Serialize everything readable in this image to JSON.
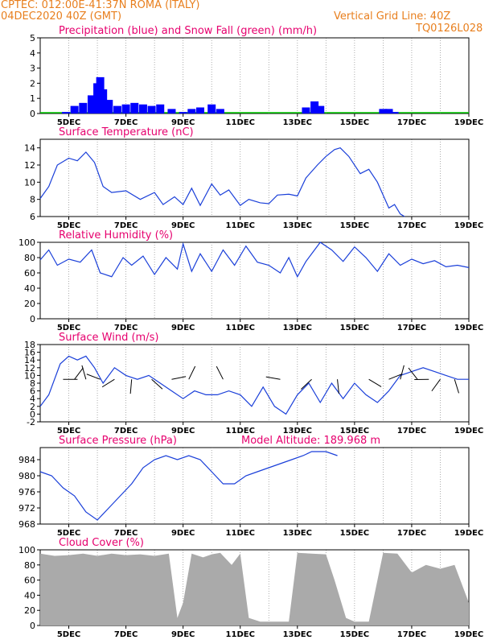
{
  "header": {
    "left_line1": "CPTEC:   012:00E-41:37N   ROMA (ITALY)",
    "left_line2": "04DEC2020 40Z (GMT)",
    "right_line1": "Vertical Grid Line: 40Z",
    "right_line2": "TQ0126L028"
  },
  "colors": {
    "header": "#e87f1e",
    "title": "#e6006e",
    "precip": "#0000ff",
    "snow": "#00cc00",
    "line": "#1a3fd9",
    "cloud": "#aaaaaa",
    "axis": "#000000",
    "grid": "#999999"
  },
  "x_axis": {
    "min_day": 4,
    "max_day": 19,
    "date_ticks": [
      "5DEC",
      "7DEC",
      "9DEC",
      "11DEC",
      "13DEC",
      "15DEC",
      "17DEC",
      "19DEC"
    ],
    "date_tick_days": [
      5,
      7,
      9,
      11,
      13,
      15,
      17,
      19
    ]
  },
  "chart_data": [
    {
      "type": "bar",
      "title": "Precipitation (blue) and Snow Fall (green) (mm/h)",
      "ylim": [
        0,
        5
      ],
      "yticks": [
        "0",
        "1",
        "2",
        "3",
        "4",
        "5"
      ],
      "series": [
        {
          "name": "Precipitation",
          "unit": "mm/h",
          "x_days": [
            4.9,
            5.2,
            5.5,
            5.8,
            6.0,
            6.1,
            6.2,
            6.4,
            6.7,
            7.0,
            7.3,
            7.6,
            7.9,
            8.2,
            8.6,
            9.0,
            9.3,
            9.6,
            10.0,
            10.3,
            13.3,
            13.6,
            13.8,
            16.0,
            16.2,
            16.4
          ],
          "values": [
            0.1,
            0.5,
            0.7,
            1.2,
            2.0,
            2.4,
            1.6,
            0.9,
            0.5,
            0.6,
            0.7,
            0.6,
            0.5,
            0.6,
            0.3,
            0.1,
            0.3,
            0.4,
            0.6,
            0.3,
            0.4,
            0.8,
            0.5,
            0.3,
            0.3,
            0.1
          ]
        },
        {
          "name": "Snow Fall",
          "unit": "mm/h",
          "values": []
        }
      ]
    },
    {
      "type": "line",
      "title": "Surface Temperature (nC)",
      "ylim": [
        6,
        15
      ],
      "yticks": [
        "6",
        "8",
        "10",
        "12",
        "14"
      ],
      "series": [
        {
          "name": "Temperature",
          "x_days": [
            4.0,
            4.3,
            4.6,
            5.0,
            5.3,
            5.6,
            5.9,
            6.2,
            6.5,
            7.0,
            7.5,
            8.0,
            8.3,
            8.7,
            9.0,
            9.3,
            9.6,
            10.0,
            10.3,
            10.6,
            11.0,
            11.3,
            11.7,
            12.0,
            12.3,
            12.7,
            13.0,
            13.3,
            13.7,
            14.0,
            14.3,
            14.5,
            14.8,
            15.2,
            15.5,
            15.8,
            16.0,
            16.2,
            16.4,
            16.6,
            16.75
          ],
          "values": [
            8.1,
            9.5,
            12.0,
            12.8,
            12.5,
            13.5,
            12.3,
            9.5,
            8.8,
            9.0,
            8.0,
            8.8,
            7.4,
            8.3,
            7.4,
            9.3,
            7.3,
            9.8,
            8.5,
            9.1,
            7.3,
            8.0,
            7.6,
            7.5,
            8.5,
            8.6,
            8.4,
            10.5,
            12.0,
            13.0,
            13.8,
            14.0,
            13.0,
            11.0,
            11.5,
            10.0,
            8.5,
            7.0,
            7.4,
            6.3,
            6.0
          ]
        }
      ]
    },
    {
      "type": "line",
      "title": "Relative Humidity (%)",
      "ylim": [
        0,
        100
      ],
      "yticks": [
        "0",
        "20",
        "40",
        "60",
        "80",
        "100"
      ],
      "series": [
        {
          "name": "Relative Humidity",
          "x_days": [
            4.0,
            4.3,
            4.6,
            5.0,
            5.4,
            5.8,
            6.1,
            6.5,
            6.9,
            7.2,
            7.6,
            8.0,
            8.4,
            8.8,
            9.0,
            9.3,
            9.6,
            10.0,
            10.4,
            10.8,
            11.2,
            11.6,
            12.0,
            12.4,
            12.7,
            13.0,
            13.3,
            13.8,
            14.2,
            14.6,
            15.0,
            15.4,
            15.8,
            16.2,
            16.6,
            17.0,
            17.4,
            17.8,
            18.2,
            18.6,
            19.0
          ],
          "values": [
            77,
            90,
            70,
            78,
            74,
            90,
            60,
            55,
            80,
            70,
            82,
            58,
            80,
            65,
            98,
            62,
            85,
            62,
            90,
            70,
            95,
            74,
            70,
            60,
            80,
            55,
            75,
            100,
            90,
            75,
            94,
            80,
            62,
            85,
            70,
            78,
            72,
            76,
            68,
            70,
            67
          ]
        }
      ]
    },
    {
      "type": "line",
      "title": "Surface Wind (m/s)",
      "ylim": [
        -2,
        18
      ],
      "yticks": [
        "-2",
        "0",
        "2",
        "4",
        "6",
        "8",
        "10",
        "12",
        "14",
        "16",
        "18"
      ],
      "series": [
        {
          "name": "Wind Speed",
          "x_days": [
            4.0,
            4.3,
            4.7,
            5.0,
            5.3,
            5.6,
            5.9,
            6.2,
            6.6,
            7.0,
            7.4,
            7.8,
            8.2,
            8.6,
            9.0,
            9.4,
            9.8,
            10.2,
            10.6,
            11.0,
            11.4,
            11.8,
            12.2,
            12.6,
            13.0,
            13.4,
            13.8,
            14.2,
            14.6,
            15.0,
            15.4,
            15.8,
            16.2,
            16.6,
            17.0,
            17.4,
            17.8,
            18.2,
            18.6,
            19.0
          ],
          "values": [
            2,
            5,
            13,
            15,
            14,
            15,
            12,
            8,
            12,
            10,
            9,
            10,
            8,
            6,
            4,
            6,
            5,
            5,
            6,
            5,
            2,
            7,
            2,
            0,
            5,
            8,
            3,
            8,
            4,
            8,
            5,
            3,
            6,
            10,
            11,
            12,
            11,
            10,
            9,
            9
          ]
        }
      ],
      "arrows_days": [
        4.8,
        5.2,
        5.6,
        6.1,
        6.6,
        7.2,
        7.9,
        8.6,
        9.2,
        10.4,
        12.4,
        13.5,
        14.4,
        15.5,
        16.2,
        16.6,
        17.2,
        17.6,
        18.0,
        18.5
      ]
    },
    {
      "type": "line",
      "title": "Surface Pressure (hPa)",
      "annotation": "Model Altitude: 189.968 m",
      "ylim": [
        968,
        987
      ],
      "yticks": [
        "968",
        "972",
        "976",
        "980",
        "984"
      ],
      "series": [
        {
          "name": "Pressure",
          "x_days": [
            4.0,
            4.4,
            4.8,
            5.2,
            5.6,
            6.0,
            6.4,
            6.8,
            7.2,
            7.6,
            8.0,
            8.4,
            8.8,
            9.2,
            9.6,
            10.0,
            10.4,
            10.8,
            11.2,
            11.6,
            12.0,
            12.4,
            12.8,
            13.2,
            13.5,
            14.0,
            14.4
          ],
          "values": [
            981,
            980,
            977,
            975,
            971,
            969,
            972,
            975,
            978,
            982,
            984,
            985,
            984,
            985,
            984,
            981,
            978,
            978,
            980,
            981,
            982,
            983,
            984,
            985,
            986,
            986,
            985
          ]
        }
      ]
    },
    {
      "type": "area",
      "title": "Cloud Cover (%)",
      "ylim": [
        0,
        100
      ],
      "yticks": [
        "0",
        "20",
        "40",
        "60",
        "80",
        "100"
      ],
      "series": [
        {
          "name": "Cloud Cover",
          "x_days": [
            4.0,
            4.5,
            5.0,
            5.5,
            6.0,
            6.5,
            7.0,
            7.5,
            8.0,
            8.5,
            8.8,
            9.0,
            9.3,
            9.7,
            10.0,
            10.3,
            10.7,
            11.0,
            11.3,
            11.7,
            12.0,
            12.3,
            12.7,
            13.0,
            13.5,
            14.0,
            14.3,
            14.7,
            15.0,
            15.5,
            16.0,
            16.5,
            17.0,
            17.5,
            18.0,
            18.5,
            19.0
          ],
          "values": [
            95,
            92,
            93,
            95,
            92,
            95,
            93,
            94,
            92,
            95,
            10,
            30,
            95,
            90,
            94,
            96,
            80,
            95,
            10,
            5,
            5,
            5,
            5,
            96,
            95,
            94,
            60,
            10,
            5,
            5,
            96,
            95,
            70,
            80,
            75,
            80,
            30
          ]
        }
      ]
    }
  ]
}
